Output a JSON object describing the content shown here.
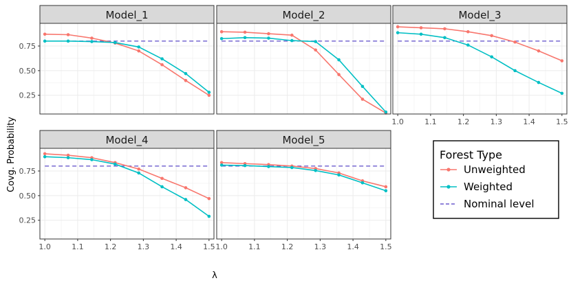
{
  "chart_data": {
    "type": "line",
    "ylabel": "Covg. Probability",
    "xlabel": "λ",
    "x": [
      1.0,
      1.071,
      1.143,
      1.214,
      1.286,
      1.357,
      1.429,
      1.5
    ],
    "xlim": [
      0.985,
      1.515
    ],
    "ylim": [
      0.06,
      0.98
    ],
    "xticks": [
      1.0,
      1.1,
      1.2,
      1.3,
      1.4,
      1.5
    ],
    "xtick_labels": [
      "1.0",
      "1.1",
      "1.2",
      "1.3",
      "1.4",
      "1.5"
    ],
    "yticks": [
      0.25,
      0.5,
      0.75
    ],
    "ytick_labels": [
      "0.25",
      "0.50",
      "0.75"
    ],
    "nominal_level": 0.8,
    "colors": {
      "unweighted": "#F8766D",
      "weighted": "#00BFC4",
      "nominal": "#6A5ACD",
      "strip_bg": "#D9D9D9",
      "grid": "#EBEBEB"
    },
    "legend": {
      "title": "Forest Type",
      "entries": [
        "Unweighted",
        "Weighted",
        "Nominal level"
      ],
      "position": "right"
    },
    "panels": [
      {
        "title": "Model_1",
        "series": [
          {
            "name": "Unweighted",
            "values": [
              0.87,
              0.865,
              0.83,
              0.78,
              0.7,
              0.56,
              0.4,
              0.25
            ]
          },
          {
            "name": "Weighted",
            "values": [
              0.8,
              0.8,
              0.795,
              0.785,
              0.74,
              0.62,
              0.47,
              0.28
            ]
          }
        ]
      },
      {
        "title": "Model_2",
        "series": [
          {
            "name": "Unweighted",
            "values": [
              0.895,
              0.89,
              0.875,
              0.86,
              0.71,
              0.46,
              0.21,
              0.07
            ]
          },
          {
            "name": "Weighted",
            "values": [
              0.825,
              0.835,
              0.83,
              0.805,
              0.795,
              0.61,
              0.34,
              0.08
            ]
          }
        ]
      },
      {
        "title": "Model_3",
        "series": [
          {
            "name": "Unweighted",
            "values": [
              0.945,
              0.935,
              0.925,
              0.895,
              0.855,
              0.79,
              0.7,
              0.6
            ]
          },
          {
            "name": "Weighted",
            "values": [
              0.885,
              0.87,
              0.835,
              0.76,
              0.64,
              0.5,
              0.38,
              0.27
            ]
          }
        ]
      },
      {
        "title": "Model_4",
        "series": [
          {
            "name": "Unweighted",
            "values": [
              0.925,
              0.91,
              0.885,
              0.835,
              0.77,
              0.675,
              0.58,
              0.47
            ]
          },
          {
            "name": "Weighted",
            "values": [
              0.895,
              0.885,
              0.865,
              0.82,
              0.73,
              0.59,
              0.46,
              0.29
            ]
          }
        ]
      },
      {
        "title": "Model_5",
        "series": [
          {
            "name": "Unweighted",
            "values": [
              0.835,
              0.825,
              0.815,
              0.8,
              0.775,
              0.73,
              0.65,
              0.59
            ]
          },
          {
            "name": "Weighted",
            "values": [
              0.81,
              0.805,
              0.795,
              0.785,
              0.755,
              0.71,
              0.63,
              0.55
            ]
          }
        ]
      }
    ]
  }
}
